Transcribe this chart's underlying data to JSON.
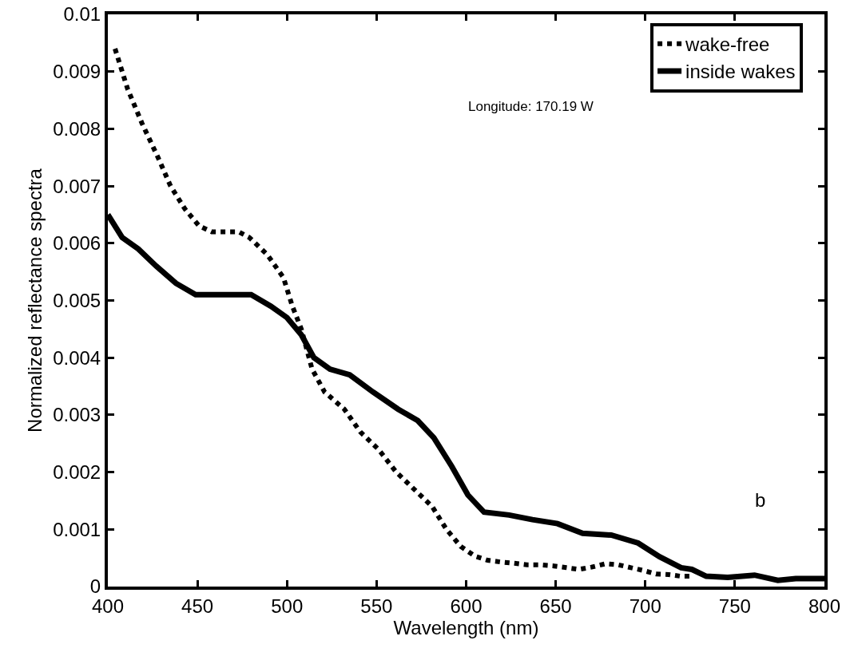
{
  "chart_data": {
    "type": "line",
    "xlabel": "Wavelength (nm)",
    "ylabel": "Normalized reflectance spectra",
    "xlim": [
      400,
      800
    ],
    "xticks": [
      400,
      450,
      500,
      550,
      600,
      650,
      700,
      750,
      800
    ],
    "ylim": [
      0,
      0.01
    ],
    "yticks": [
      {
        "value": 0,
        "label": "0"
      },
      0.001,
      0.002,
      0.003,
      0.004,
      0.005,
      0.006,
      0.007,
      0.008,
      0.009,
      0.01
    ],
    "grid": false,
    "legend": "top right",
    "marker": "none",
    "annotations": [
      "Longitude: 170.19 W",
      "b"
    ],
    "series": [
      {
        "name": "wake-free",
        "color": "#000000",
        "line_style": "dotted",
        "x": [
          404,
          411,
          419,
          428,
          435,
          443,
          451,
          458,
          465,
          473,
          479,
          489,
          498,
          503,
          508,
          514,
          521,
          532,
          541,
          551,
          561,
          571,
          581,
          589,
          597,
          605,
          612,
          619,
          626,
          634,
          641,
          649,
          656,
          663,
          670,
          678,
          685,
          692,
          699,
          706,
          713,
          720,
          726
        ],
        "values": [
          0.0094,
          0.0087,
          0.0081,
          0.0075,
          0.007,
          0.0066,
          0.0063,
          0.0062,
          0.0062,
          0.0062,
          0.0061,
          0.0058,
          0.0054,
          0.0049,
          0.0045,
          0.0038,
          0.0034,
          0.0031,
          0.0027,
          0.0024,
          0.002,
          0.0017,
          0.0014,
          0.001,
          0.0007,
          0.00053,
          0.00046,
          0.00043,
          0.00041,
          0.00038,
          0.00038,
          0.00036,
          0.00033,
          0.0003,
          0.00034,
          0.0004,
          0.00038,
          0.00033,
          0.00028,
          0.00022,
          0.00021,
          0.00018,
          0.00018
        ]
      },
      {
        "name": "inside wakes",
        "color": "#000000",
        "line_style": "solid",
        "x": [
          400,
          408,
          417,
          427,
          438,
          449,
          458,
          467,
          480,
          491,
          500,
          508,
          515,
          524,
          535,
          548,
          562,
          573,
          582,
          592,
          601,
          610,
          624,
          637,
          651,
          665,
          681,
          696,
          708,
          720,
          726,
          734,
          746,
          761,
          774,
          784,
          796,
          800
        ],
        "values": [
          0.0065,
          0.0061,
          0.0059,
          0.0056,
          0.0053,
          0.0051,
          0.0051,
          0.0051,
          0.0051,
          0.0049,
          0.0047,
          0.0044,
          0.004,
          0.0038,
          0.0037,
          0.0034,
          0.0031,
          0.0029,
          0.0026,
          0.0021,
          0.0016,
          0.0013,
          0.00125,
          0.00117,
          0.0011,
          0.00093,
          0.0009,
          0.00076,
          0.00052,
          0.00033,
          0.0003,
          0.00018,
          0.00016,
          0.0002,
          0.00011,
          0.00014,
          0.00014,
          0.00014
        ]
      }
    ]
  }
}
